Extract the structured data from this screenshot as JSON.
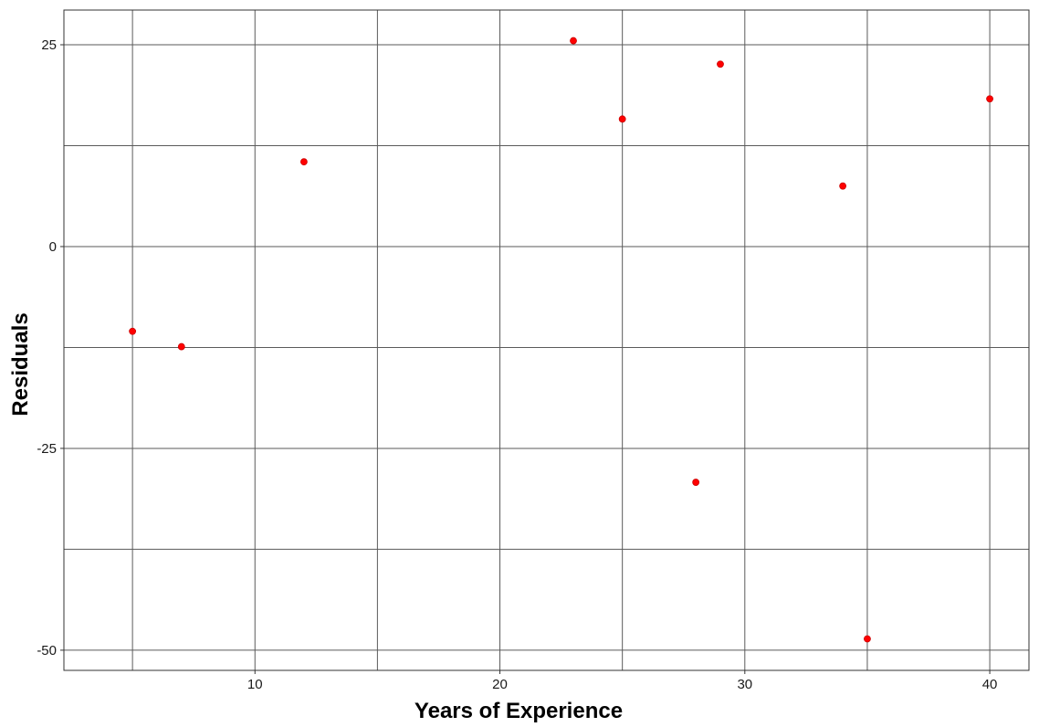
{
  "chart_data": {
    "type": "scatter",
    "title": "",
    "xlabel": "Years of Experience",
    "ylabel": "Residuals",
    "xlim": [
      2.2,
      41.6
    ],
    "ylim": [
      -52.5,
      29.3
    ],
    "x_ticks": [
      10,
      20,
      30,
      40
    ],
    "x_tick_labels": [
      "10",
      "20",
      "30",
      "40"
    ],
    "x_minor_ticks": [
      5,
      15,
      25,
      35
    ],
    "y_ticks": [
      -50,
      -25,
      0,
      25
    ],
    "y_tick_labels": [
      "-50",
      "-25",
      "0",
      "25"
    ],
    "y_minor_ticks": [
      -37.5,
      -12.5,
      12.5
    ],
    "grid": true,
    "point_color": "#ff0000",
    "gridline_color": "#5a5a5a",
    "points": [
      {
        "x": 5,
        "y": -10.5
      },
      {
        "x": 7,
        "y": -12.4
      },
      {
        "x": 12,
        "y": 10.5
      },
      {
        "x": 23,
        "y": 25.5
      },
      {
        "x": 25,
        "y": 15.8
      },
      {
        "x": 28,
        "y": -29.2
      },
      {
        "x": 29,
        "y": 22.6
      },
      {
        "x": 34,
        "y": 7.5
      },
      {
        "x": 35,
        "y": -48.6
      },
      {
        "x": 40,
        "y": 18.3
      }
    ]
  }
}
